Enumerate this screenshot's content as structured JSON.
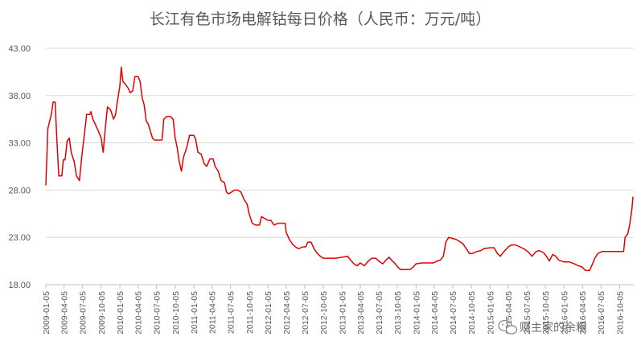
{
  "chart_data": {
    "type": "line",
    "title": "长江有色市场电解钴每日价格（人民币：万元/吨）",
    "xlabel": "",
    "ylabel": "",
    "ylim": [
      18,
      43
    ],
    "y_ticks": [
      "18.00",
      "23.00",
      "28.00",
      "33.00",
      "38.00",
      "43.00"
    ],
    "x_ticks": [
      "2009-01-05",
      "2009-04-05",
      "2009-07-05",
      "2009-10-05",
      "2010-01-05",
      "2010-04-05",
      "2010-07-05",
      "2010-10-05",
      "2011-01-05",
      "2011-04-05",
      "2011-07-05",
      "2011-10-05",
      "2012-01-05",
      "2012-04-05",
      "2012-07-05",
      "2012-10-05",
      "2013-01-05",
      "2013-04-05",
      "2013-07-05",
      "2013-10-05",
      "2014-01-05",
      "2014-04-05",
      "2014-07-05",
      "2014-10-05",
      "2015-01-05",
      "2015-04-05",
      "2015-07-05",
      "2015-10-05",
      "2016-01-05",
      "2016-04-05",
      "2016-07-05",
      "2016-10-05"
    ],
    "grid": "horizontal",
    "legend": "none",
    "series": [
      {
        "color": "#e00000",
        "points": [
          [
            "2009-01-05",
            28.5
          ],
          [
            "2009-01-15",
            34.5
          ],
          [
            "2009-02-01",
            36.0
          ],
          [
            "2009-02-10",
            37.3
          ],
          [
            "2009-02-20",
            37.3
          ],
          [
            "2009-02-28",
            33.5
          ],
          [
            "2009-03-10",
            29.5
          ],
          [
            "2009-03-25",
            29.5
          ],
          [
            "2009-04-01",
            31.2
          ],
          [
            "2009-04-10",
            31.2
          ],
          [
            "2009-04-20",
            33.2
          ],
          [
            "2009-05-01",
            33.5
          ],
          [
            "2009-05-10",
            32.0
          ],
          [
            "2009-05-25",
            31.0
          ],
          [
            "2009-06-05",
            29.5
          ],
          [
            "2009-06-20",
            29.0
          ],
          [
            "2009-07-01",
            31.5
          ],
          [
            "2009-07-15",
            34.0
          ],
          [
            "2009-07-25",
            36.0
          ],
          [
            "2009-08-10",
            36.0
          ],
          [
            "2009-08-15",
            36.3
          ],
          [
            "2009-08-25",
            35.5
          ],
          [
            "2009-09-05",
            35.0
          ],
          [
            "2009-09-20",
            34.3
          ],
          [
            "2009-10-05",
            33.5
          ],
          [
            "2009-10-15",
            32.0
          ],
          [
            "2009-10-25",
            34.5
          ],
          [
            "2009-11-05",
            36.8
          ],
          [
            "2009-11-20",
            36.5
          ],
          [
            "2009-12-05",
            35.5
          ],
          [
            "2009-12-15",
            36.0
          ],
          [
            "2009-12-25",
            37.5
          ],
          [
            "2010-01-05",
            39.0
          ],
          [
            "2010-01-12",
            41.0
          ],
          [
            "2010-01-20",
            39.5
          ],
          [
            "2010-02-01",
            39.2
          ],
          [
            "2010-02-15",
            38.8
          ],
          [
            "2010-02-25",
            38.3
          ],
          [
            "2010-03-10",
            38.5
          ],
          [
            "2010-03-20",
            40.0
          ],
          [
            "2010-04-05",
            40.0
          ],
          [
            "2010-04-15",
            39.5
          ],
          [
            "2010-04-25",
            37.8
          ],
          [
            "2010-05-05",
            37.0
          ],
          [
            "2010-05-15",
            35.3
          ],
          [
            "2010-05-25",
            35.0
          ],
          [
            "2010-06-05",
            34.2
          ],
          [
            "2010-06-15",
            33.5
          ],
          [
            "2010-06-25",
            33.3
          ],
          [
            "2010-07-15",
            33.3
          ],
          [
            "2010-08-01",
            33.3
          ],
          [
            "2010-08-10",
            35.5
          ],
          [
            "2010-08-25",
            35.8
          ],
          [
            "2010-09-10",
            35.8
          ],
          [
            "2010-09-25",
            35.5
          ],
          [
            "2010-10-05",
            33.5
          ],
          [
            "2010-10-15",
            32.5
          ],
          [
            "2010-10-25",
            31.0
          ],
          [
            "2010-11-05",
            30.0
          ],
          [
            "2010-11-15",
            31.5
          ],
          [
            "2010-12-01",
            32.5
          ],
          [
            "2010-12-15",
            33.8
          ],
          [
            "2011-01-05",
            33.8
          ],
          [
            "2011-01-15",
            33.3
          ],
          [
            "2011-01-25",
            32.0
          ],
          [
            "2011-02-10",
            31.8
          ],
          [
            "2011-02-25",
            30.8
          ],
          [
            "2011-03-10",
            30.5
          ],
          [
            "2011-03-25",
            31.3
          ],
          [
            "2011-04-10",
            31.3
          ],
          [
            "2011-04-20",
            30.5
          ],
          [
            "2011-05-05",
            30.0
          ],
          [
            "2011-05-20",
            29.0
          ],
          [
            "2011-06-05",
            28.8
          ],
          [
            "2011-06-15",
            27.8
          ],
          [
            "2011-06-25",
            27.6
          ],
          [
            "2011-07-10",
            27.8
          ],
          [
            "2011-07-25",
            28.0
          ],
          [
            "2011-08-10",
            28.0
          ],
          [
            "2011-08-25",
            27.8
          ],
          [
            "2011-09-10",
            27.0
          ],
          [
            "2011-09-25",
            26.5
          ],
          [
            "2011-10-05",
            25.5
          ],
          [
            "2011-10-20",
            24.5
          ],
          [
            "2011-11-05",
            24.3
          ],
          [
            "2011-11-25",
            24.3
          ],
          [
            "2011-12-05",
            25.2
          ],
          [
            "2011-12-20",
            25.0
          ],
          [
            "2012-01-05",
            24.8
          ],
          [
            "2012-01-20",
            24.8
          ],
          [
            "2012-02-05",
            24.3
          ],
          [
            "2012-02-25",
            24.5
          ],
          [
            "2012-03-15",
            24.5
          ],
          [
            "2012-03-30",
            24.5
          ],
          [
            "2012-04-05",
            23.5
          ],
          [
            "2012-04-20",
            22.8
          ],
          [
            "2012-05-05",
            22.3
          ],
          [
            "2012-05-20",
            22.0
          ],
          [
            "2012-06-05",
            21.8
          ],
          [
            "2012-06-25",
            22.0
          ],
          [
            "2012-07-10",
            22.0
          ],
          [
            "2012-07-20",
            22.5
          ],
          [
            "2012-08-05",
            22.5
          ],
          [
            "2012-08-20",
            21.8
          ],
          [
            "2012-09-05",
            21.3
          ],
          [
            "2012-09-20",
            21.0
          ],
          [
            "2012-10-05",
            20.8
          ],
          [
            "2012-11-05",
            20.8
          ],
          [
            "2012-12-05",
            20.8
          ],
          [
            "2013-01-05",
            20.9
          ],
          [
            "2013-02-01",
            21.0
          ],
          [
            "2013-02-20",
            20.5
          ],
          [
            "2013-03-05",
            20.2
          ],
          [
            "2013-03-20",
            20.0
          ],
          [
            "2013-04-05",
            20.3
          ],
          [
            "2013-04-25",
            20.0
          ],
          [
            "2013-05-15",
            20.5
          ],
          [
            "2013-06-01",
            20.8
          ],
          [
            "2013-06-20",
            20.8
          ],
          [
            "2013-07-05",
            20.5
          ],
          [
            "2013-07-25",
            20.2
          ],
          [
            "2013-08-10",
            20.6
          ],
          [
            "2013-08-25",
            20.9
          ],
          [
            "2013-09-10",
            20.5
          ],
          [
            "2013-09-25",
            20.2
          ],
          [
            "2013-10-05",
            19.9
          ],
          [
            "2013-10-20",
            19.6
          ],
          [
            "2013-11-05",
            19.6
          ],
          [
            "2013-12-05",
            19.6
          ],
          [
            "2013-12-20",
            19.8
          ],
          [
            "2014-01-05",
            20.2
          ],
          [
            "2014-02-01",
            20.3
          ],
          [
            "2014-03-01",
            20.3
          ],
          [
            "2014-04-01",
            20.3
          ],
          [
            "2014-04-20",
            20.5
          ],
          [
            "2014-05-05",
            20.6
          ],
          [
            "2014-05-20",
            21.0
          ],
          [
            "2014-06-01",
            22.5
          ],
          [
            "2014-06-15",
            23.0
          ],
          [
            "2014-07-01",
            22.9
          ],
          [
            "2014-07-20",
            22.8
          ],
          [
            "2014-08-05",
            22.6
          ],
          [
            "2014-08-25",
            22.3
          ],
          [
            "2014-09-10",
            21.8
          ],
          [
            "2014-09-25",
            21.3
          ],
          [
            "2014-10-10",
            21.3
          ],
          [
            "2014-11-01",
            21.5
          ],
          [
            "2014-11-20",
            21.6
          ],
          [
            "2014-12-05",
            21.8
          ],
          [
            "2015-01-05",
            21.9
          ],
          [
            "2015-01-25",
            21.9
          ],
          [
            "2015-02-10",
            21.3
          ],
          [
            "2015-02-25",
            21.0
          ],
          [
            "2015-03-15",
            21.5
          ],
          [
            "2015-04-05",
            22.0
          ],
          [
            "2015-04-20",
            22.2
          ],
          [
            "2015-05-10",
            22.2
          ],
          [
            "2015-06-01",
            22.0
          ],
          [
            "2015-06-20",
            21.8
          ],
          [
            "2015-07-10",
            21.5
          ],
          [
            "2015-08-01",
            21.0
          ],
          [
            "2015-08-20",
            21.5
          ],
          [
            "2015-09-05",
            21.6
          ],
          [
            "2015-09-25",
            21.4
          ],
          [
            "2015-10-10",
            21.0
          ],
          [
            "2015-10-25",
            20.5
          ],
          [
            "2015-11-10",
            21.2
          ],
          [
            "2015-11-25",
            21.0
          ],
          [
            "2015-12-10",
            20.6
          ],
          [
            "2016-01-05",
            20.4
          ],
          [
            "2016-02-01",
            20.4
          ],
          [
            "2016-02-25",
            20.2
          ],
          [
            "2016-03-15",
            20.0
          ],
          [
            "2016-04-01",
            19.9
          ],
          [
            "2016-04-20",
            19.5
          ],
          [
            "2016-05-10",
            19.5
          ],
          [
            "2016-05-25",
            20.2
          ],
          [
            "2016-06-05",
            20.8
          ],
          [
            "2016-06-20",
            21.3
          ],
          [
            "2016-07-10",
            21.5
          ],
          [
            "2016-08-01",
            21.5
          ],
          [
            "2016-08-20",
            21.5
          ],
          [
            "2016-09-10",
            21.5
          ],
          [
            "2016-10-05",
            21.5
          ],
          [
            "2016-10-25",
            21.5
          ],
          [
            "2016-11-01",
            23.0
          ],
          [
            "2016-11-15",
            23.4
          ],
          [
            "2016-11-25",
            24.5
          ],
          [
            "2016-12-05",
            26.0
          ],
          [
            "2016-12-10",
            27.3
          ]
        ]
      }
    ]
  },
  "watermark": {
    "text": "财主家的余粮",
    "icon": "wechat-icon"
  }
}
